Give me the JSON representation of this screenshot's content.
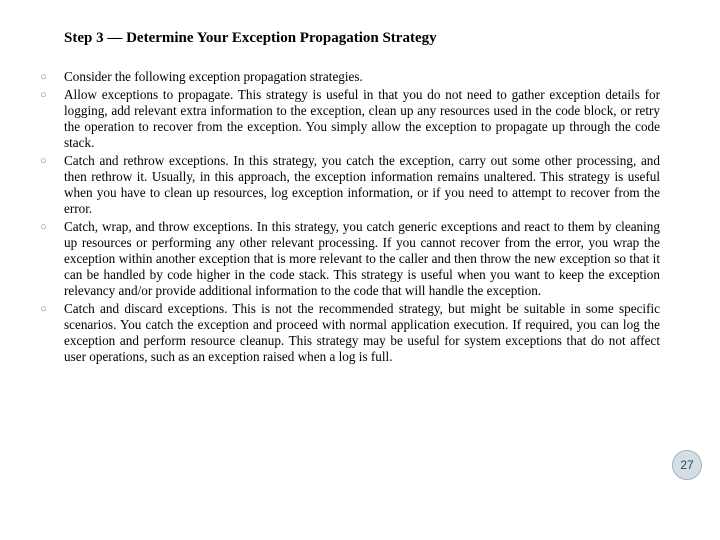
{
  "title": "Step 3 — Determine Your Exception Propagation Strategy",
  "bullets": [
    "Consider the following exception propagation strategies.",
    "Allow exceptions to propagate. This strategy is useful in that you do not need to gather exception details for logging, add relevant extra information to the exception, clean up any resources used in the code block, or retry the operation to recover from the exception. You simply allow the exception to propagate up through the code stack.",
    "Catch and rethrow exceptions. In this strategy, you catch the exception, carry out some other processing, and then rethrow it. Usually, in this approach, the exception information remains unaltered. This strategy is useful when you have to clean up resources, log exception information, or if you need to attempt to recover from the error.",
    "Catch, wrap, and throw exceptions. In this strategy, you catch generic exceptions and react to them by cleaning up resources or performing any other relevant processing. If you cannot recover from the error, you wrap the exception within another exception that is more relevant to the caller and then throw the new exception so that it can be handled by code higher in the code stack. This strategy is useful when you want to keep the exception relevancy and/or provide additional information to the code that will handle the exception.",
    "Catch and discard exceptions. This is not the recommended strategy, but might be suitable in some specific scenarios. You catch the exception and proceed with normal application execution. If required, you can log the exception and perform resource cleanup. This strategy may be useful for system exceptions that do not affect user operations, such as an exception raised when a log is full."
  ],
  "page_number": "27",
  "colors": {
    "bullet_marker": "#5b8a9a",
    "text": "#000000",
    "page_badge_bg": "#d7dee3",
    "page_badge_border": "#9db4bf",
    "page_badge_text": "#1a4a5e"
  }
}
